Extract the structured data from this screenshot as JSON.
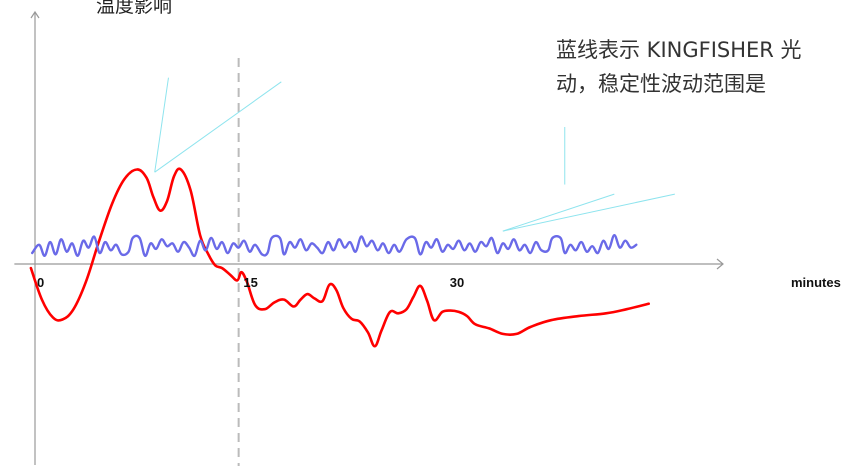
{
  "chart_data": {
    "type": "line",
    "ylabel": "温度影响",
    "xlabel": "minutes",
    "x_ticks": [
      0,
      15,
      30
    ],
    "xlim": [
      -1.5,
      50
    ],
    "ylim": [
      -10,
      10
    ],
    "reference_line_x": 14.8,
    "annotation": {
      "line1": "蓝线表示 KINGFISHER 光",
      "line2": "动，稳定性波动范围是"
    },
    "series": [
      {
        "color": "#ff0000",
        "points": [
          [
            -0.3,
            -0.3
          ],
          [
            0.5,
            -2.6
          ],
          [
            1.3,
            -3.9
          ],
          [
            2.0,
            -4.05
          ],
          [
            2.8,
            -3.3
          ],
          [
            3.7,
            -1.3
          ],
          [
            4.6,
            1.5
          ],
          [
            5.6,
            4.4
          ],
          [
            6.5,
            6.2
          ],
          [
            7.4,
            6.9
          ],
          [
            8.1,
            6.3
          ],
          [
            8.6,
            4.9
          ],
          [
            9.1,
            3.9
          ],
          [
            9.6,
            4.6
          ],
          [
            10.1,
            6.4
          ],
          [
            10.6,
            6.9
          ],
          [
            11.3,
            5.4
          ],
          [
            12.0,
            2.1
          ],
          [
            12.6,
            0.7
          ],
          [
            13.1,
            -0.1
          ],
          [
            13.6,
            -0.3
          ],
          [
            14.2,
            -0.8
          ],
          [
            14.7,
            -1.2
          ],
          [
            15.0,
            -0.6
          ],
          [
            15.4,
            -1.3
          ],
          [
            16.0,
            -3.0
          ],
          [
            16.7,
            -3.3
          ],
          [
            17.4,
            -2.8
          ],
          [
            18.1,
            -2.6
          ],
          [
            18.8,
            -3.1
          ],
          [
            19.3,
            -2.6
          ],
          [
            19.8,
            -2.2
          ],
          [
            20.3,
            -2.5
          ],
          [
            20.9,
            -2.7
          ],
          [
            21.4,
            -1.5
          ],
          [
            21.9,
            -1.9
          ],
          [
            22.4,
            -3.2
          ],
          [
            23.0,
            -4.0
          ],
          [
            23.6,
            -4.2
          ],
          [
            24.2,
            -5.0
          ],
          [
            24.7,
            -6.0
          ],
          [
            25.2,
            -4.8
          ],
          [
            25.8,
            -3.5
          ],
          [
            26.4,
            -3.6
          ],
          [
            27.0,
            -3.3
          ],
          [
            27.5,
            -2.4
          ],
          [
            28.0,
            -1.6
          ],
          [
            28.5,
            -2.7
          ],
          [
            29.0,
            -4.1
          ],
          [
            29.6,
            -3.5
          ],
          [
            30.2,
            -3.4
          ],
          [
            30.8,
            -3.5
          ],
          [
            31.4,
            -3.8
          ],
          [
            32.0,
            -4.4
          ],
          [
            33.0,
            -4.7
          ],
          [
            34.0,
            -5.1
          ],
          [
            35.0,
            -5.1
          ],
          [
            36.0,
            -4.6
          ],
          [
            37.5,
            -4.1
          ],
          [
            39.5,
            -3.8
          ],
          [
            41.5,
            -3.6
          ],
          [
            43.0,
            -3.3
          ],
          [
            44.6,
            -2.9
          ]
        ]
      },
      {
        "color": "#6a6ae8",
        "points": [
          [
            -0.2,
            0.8
          ],
          [
            0.3,
            1.4
          ],
          [
            0.7,
            0.6
          ],
          [
            1.1,
            1.6
          ],
          [
            1.5,
            0.7
          ],
          [
            1.9,
            1.8
          ],
          [
            2.3,
            0.9
          ],
          [
            2.7,
            1.5
          ],
          [
            3.1,
            0.6
          ],
          [
            3.5,
            1.7
          ],
          [
            3.9,
            1.2
          ],
          [
            4.3,
            2.0
          ],
          [
            4.7,
            0.8
          ],
          [
            5.1,
            1.6
          ],
          [
            5.5,
            1.0
          ],
          [
            5.9,
            1.4
          ],
          [
            6.3,
            0.7
          ],
          [
            6.8,
            0.9
          ],
          [
            7.1,
            1.9
          ],
          [
            7.6,
            1.9
          ],
          [
            8.0,
            0.6
          ],
          [
            8.4,
            1.5
          ],
          [
            8.8,
            1.1
          ],
          [
            9.2,
            1.8
          ],
          [
            9.6,
            1.3
          ],
          [
            10.0,
            1.5
          ],
          [
            10.4,
            0.9
          ],
          [
            10.8,
            1.6
          ],
          [
            11.2,
            1.2
          ],
          [
            11.6,
            0.6
          ],
          [
            12.0,
            1.7
          ],
          [
            12.4,
            1.0
          ],
          [
            12.8,
            1.9
          ],
          [
            13.2,
            1.1
          ],
          [
            13.6,
            1.6
          ],
          [
            14.0,
            0.8
          ],
          [
            14.4,
            1.5
          ],
          [
            14.8,
            1.2
          ],
          [
            15.2,
            1.7
          ],
          [
            15.6,
            0.9
          ],
          [
            16.0,
            1.4
          ],
          [
            16.5,
            0.7
          ],
          [
            16.9,
            0.8
          ],
          [
            17.2,
            1.9
          ],
          [
            17.8,
            1.9
          ],
          [
            18.1,
            0.7
          ],
          [
            18.5,
            1.6
          ],
          [
            18.9,
            1.2
          ],
          [
            19.3,
            1.8
          ],
          [
            19.7,
            1.0
          ],
          [
            20.1,
            1.5
          ],
          [
            20.5,
            1.2
          ],
          [
            20.9,
            0.8
          ],
          [
            21.3,
            1.6
          ],
          [
            21.7,
            1.0
          ],
          [
            22.1,
            1.8
          ],
          [
            22.5,
            1.2
          ],
          [
            22.9,
            1.6
          ],
          [
            23.3,
            0.9
          ],
          [
            23.7,
            2.0
          ],
          [
            24.1,
            1.3
          ],
          [
            24.5,
            1.7
          ],
          [
            24.9,
            1.0
          ],
          [
            25.3,
            1.5
          ],
          [
            25.7,
            0.8
          ],
          [
            26.1,
            1.4
          ],
          [
            26.5,
            0.9
          ],
          [
            27.0,
            1.8
          ],
          [
            27.6,
            1.9
          ],
          [
            28.0,
            0.7
          ],
          [
            28.4,
            1.6
          ],
          [
            28.8,
            1.2
          ],
          [
            29.2,
            1.8
          ],
          [
            29.6,
            0.9
          ],
          [
            30.0,
            1.4
          ],
          [
            30.4,
            1.1
          ],
          [
            30.8,
            1.7
          ],
          [
            31.2,
            1.0
          ],
          [
            31.6,
            1.5
          ],
          [
            32.0,
            0.9
          ],
          [
            32.4,
            1.6
          ],
          [
            32.8,
            1.3
          ],
          [
            33.2,
            1.9
          ],
          [
            33.6,
            0.8
          ],
          [
            34.0,
            1.5
          ],
          [
            34.4,
            1.1
          ],
          [
            34.8,
            1.8
          ],
          [
            35.2,
            1.0
          ],
          [
            35.6,
            1.4
          ],
          [
            36.0,
            0.8
          ],
          [
            36.4,
            1.6
          ],
          [
            36.8,
            1.0
          ],
          [
            37.3,
            1.0
          ],
          [
            37.6,
            1.9
          ],
          [
            38.2,
            1.9
          ],
          [
            38.5,
            0.8
          ],
          [
            38.9,
            1.4
          ],
          [
            39.3,
            1.0
          ],
          [
            39.7,
            1.6
          ],
          [
            40.1,
            0.9
          ],
          [
            40.5,
            1.3
          ],
          [
            40.9,
            0.8
          ],
          [
            41.3,
            1.7
          ],
          [
            41.7,
            1.1
          ],
          [
            42.1,
            2.1
          ],
          [
            42.5,
            1.2
          ],
          [
            42.9,
            1.7
          ],
          [
            43.3,
            1.2
          ],
          [
            43.7,
            1.4
          ]
        ]
      }
    ],
    "callout_lines": [
      {
        "from": [
          8.7,
          6.7
        ],
        "to": [
          9.7,
          13.6
        ]
      },
      {
        "from": [
          8.7,
          6.7
        ],
        "to": [
          17.9,
          13.3
        ]
      },
      {
        "from": [
          34.0,
          2.4
        ],
        "to": [
          42.1,
          5.1
        ]
      },
      {
        "from": [
          34.0,
          2.4
        ],
        "to": [
          46.5,
          5.1
        ]
      },
      {
        "from": [
          38.5,
          5.8
        ],
        "to": [
          38.5,
          10.0
        ]
      }
    ]
  }
}
